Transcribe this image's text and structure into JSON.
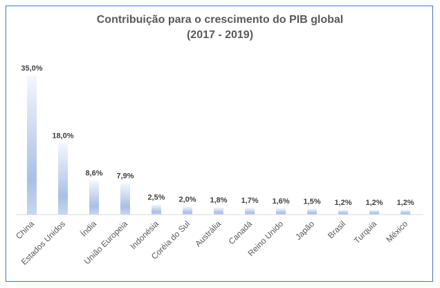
{
  "chart_data": {
    "type": "bar",
    "title": "Contribuição para o crescimento do PIB global",
    "subtitle": "(2017 - 2019)",
    "xlabel": "",
    "ylabel": "",
    "ylim": [
      0,
      35
    ],
    "grid": false,
    "categories": [
      "China",
      "Estados Unidos",
      "Índia",
      "União Europeia",
      "Indonésia",
      "Coréia do Sul",
      "Austrália",
      "Canadá",
      "Reino Unido",
      "Japão",
      "Brasil",
      "Turquia",
      "México"
    ],
    "values": [
      35.0,
      18.0,
      8.6,
      7.9,
      2.5,
      2.0,
      1.8,
      1.7,
      1.6,
      1.5,
      1.2,
      1.2,
      1.2
    ],
    "data_labels": [
      "35,0%",
      "18,0%",
      "8,6%",
      "7,9%",
      "2,5%",
      "2,0%",
      "1,8%",
      "1,7%",
      "1,6%",
      "1,5%",
      "1,2%",
      "1,2%",
      "1,2%"
    ],
    "bar_color": "#a9bfe6"
  }
}
